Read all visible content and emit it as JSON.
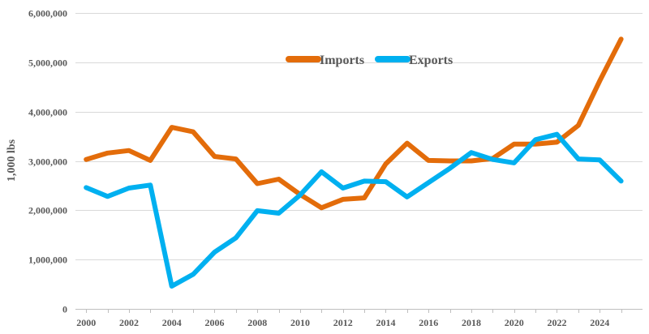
{
  "chart_data": {
    "type": "line",
    "title": "",
    "xlabel": "",
    "ylabel": "1,000 lbs",
    "ylim": [
      0,
      6000000
    ],
    "yticks": [
      0,
      1000000,
      2000000,
      3000000,
      4000000,
      5000000,
      6000000
    ],
    "ytick_labels": [
      "0",
      "1,000,000",
      "2,000,000",
      "3,000,000",
      "4,000,000",
      "5,000,000",
      "6,000,000"
    ],
    "x": [
      2000,
      2001,
      2002,
      2003,
      2004,
      2005,
      2006,
      2007,
      2008,
      2009,
      2010,
      2011,
      2012,
      2013,
      2014,
      2015,
      2016,
      2017,
      2018,
      2019,
      2020,
      2021,
      2022,
      2023,
      2024,
      2025
    ],
    "xlim": [
      1999.5,
      2026.0
    ],
    "xticks": [
      2000,
      2002,
      2004,
      2006,
      2008,
      2010,
      2012,
      2014,
      2016,
      2018,
      2020,
      2022,
      2024
    ],
    "xtick_labels": [
      "2000",
      "2002",
      "2004",
      "2006",
      "2008",
      "2010",
      "2012",
      "2014",
      "2016",
      "2018",
      "2020",
      "2022",
      "2024"
    ],
    "grid": "horizontal",
    "legend_position": "top-center",
    "series": [
      {
        "name": "Imports",
        "color": "#E36C0A",
        "values": [
          3030000,
          3160000,
          3210000,
          3010000,
          3680000,
          3590000,
          3090000,
          3040000,
          2540000,
          2630000,
          2320000,
          2050000,
          2220000,
          2250000,
          2940000,
          3360000,
          3010000,
          3000000,
          3000000,
          3050000,
          3340000,
          3340000,
          3380000,
          3720000,
          4620000,
          5470000
        ]
      },
      {
        "name": "Exports",
        "color": "#00B0F0",
        "values": [
          2460000,
          2280000,
          2450000,
          2510000,
          460000,
          700000,
          1150000,
          1440000,
          1990000,
          1940000,
          2310000,
          2780000,
          2450000,
          2590000,
          2580000,
          2270000,
          2560000,
          2850000,
          3170000,
          3030000,
          2960000,
          3430000,
          3540000,
          3040000,
          3020000,
          2590000
        ]
      }
    ]
  }
}
